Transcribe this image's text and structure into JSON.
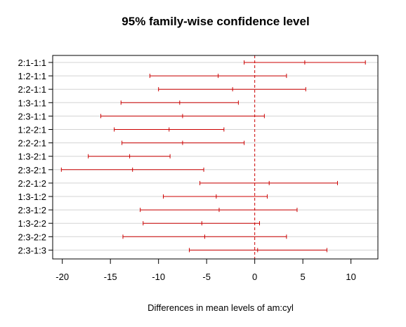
{
  "chart_data": {
    "type": "interval",
    "title": "95% family-wise confidence level",
    "xlabel": "Differences in mean levels of am:cyl",
    "ylabel": "",
    "xlim": [
      -21,
      12.8
    ],
    "xticks": [
      -20,
      -15,
      -10,
      -5,
      0,
      5,
      10
    ],
    "reference_line": 0,
    "grid": "horizontal",
    "color": "#cc0000",
    "comparisons": [
      {
        "label": "2:1-1:1",
        "lwr": -1.1,
        "diff": 5.2,
        "upr": 11.5
      },
      {
        "label": "1:2-1:1",
        "lwr": -10.9,
        "diff": -3.8,
        "upr": 3.3
      },
      {
        "label": "2:2-1:1",
        "lwr": -10.0,
        "diff": -2.3,
        "upr": 5.3
      },
      {
        "label": "1:3-1:1",
        "lwr": -13.9,
        "diff": -7.8,
        "upr": -1.7
      },
      {
        "label": "2:3-1:1",
        "lwr": -16.0,
        "diff": -7.5,
        "upr": 1.0
      },
      {
        "label": "1:2-2:1",
        "lwr": -14.6,
        "diff": -8.9,
        "upr": -3.2
      },
      {
        "label": "2:2-2:1",
        "lwr": -13.8,
        "diff": -7.5,
        "upr": -1.1
      },
      {
        "label": "1:3-2:1",
        "lwr": -17.3,
        "diff": -13.0,
        "upr": -8.8
      },
      {
        "label": "2:3-2:1",
        "lwr": -20.1,
        "diff": -12.7,
        "upr": -5.3
      },
      {
        "label": "2:2-1:2",
        "lwr": -5.7,
        "diff": 1.5,
        "upr": 8.6
      },
      {
        "label": "1:3-1:2",
        "lwr": -9.5,
        "diff": -4.0,
        "upr": 1.3
      },
      {
        "label": "2:3-1:2",
        "lwr": -11.9,
        "diff": -3.7,
        "upr": 4.4
      },
      {
        "label": "1:3-2:2",
        "lwr": -11.6,
        "diff": -5.5,
        "upr": 0.5
      },
      {
        "label": "2:3-2:2",
        "lwr": -13.7,
        "diff": -5.2,
        "upr": 3.3
      },
      {
        "label": "2:3-1:3",
        "lwr": -6.8,
        "diff": 0.3,
        "upr": 7.5
      }
    ]
  }
}
